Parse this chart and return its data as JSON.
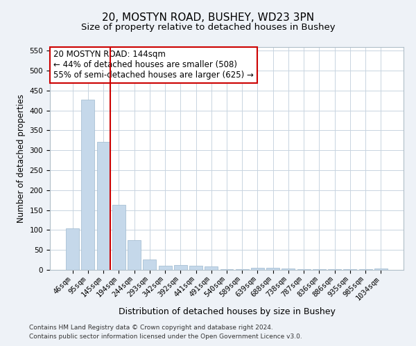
{
  "title1": "20, MOSTYN ROAD, BUSHEY, WD23 3PN",
  "title2": "Size of property relative to detached houses in Bushey",
  "xlabel": "Distribution of detached houses by size in Bushey",
  "ylabel": "Number of detached properties",
  "categories": [
    "46sqm",
    "95sqm",
    "145sqm",
    "194sqm",
    "244sqm",
    "293sqm",
    "342sqm",
    "392sqm",
    "441sqm",
    "491sqm",
    "540sqm",
    "589sqm",
    "639sqm",
    "688sqm",
    "738sqm",
    "787sqm",
    "836sqm",
    "886sqm",
    "935sqm",
    "985sqm",
    "1034sqm"
  ],
  "values": [
    105,
    428,
    322,
    163,
    75,
    26,
    11,
    13,
    11,
    8,
    1,
    1,
    6,
    5,
    3,
    1,
    1,
    1,
    1,
    1,
    4
  ],
  "bar_color": "#c5d8ea",
  "bar_edge_color": "#a8c0d4",
  "vline_color": "#cc0000",
  "annotation_text": "20 MOSTYN ROAD: 144sqm\n← 44% of detached houses are smaller (508)\n55% of semi-detached houses are larger (625) →",
  "annotation_box_color": "#ffffff",
  "annotation_box_edge_color": "#cc0000",
  "ylim": [
    0,
    560
  ],
  "yticks": [
    0,
    50,
    100,
    150,
    200,
    250,
    300,
    350,
    400,
    450,
    500,
    550
  ],
  "footer1": "Contains HM Land Registry data © Crown copyright and database right 2024.",
  "footer2": "Contains public sector information licensed under the Open Government Licence v3.0.",
  "bg_color": "#eef2f7",
  "plot_bg_color": "#ffffff",
  "grid_color": "#c8d4e0",
  "title1_fontsize": 11,
  "title2_fontsize": 9.5,
  "xlabel_fontsize": 9,
  "ylabel_fontsize": 8.5,
  "tick_fontsize": 7.5,
  "annotation_fontsize": 8.5,
  "footer_fontsize": 6.5
}
